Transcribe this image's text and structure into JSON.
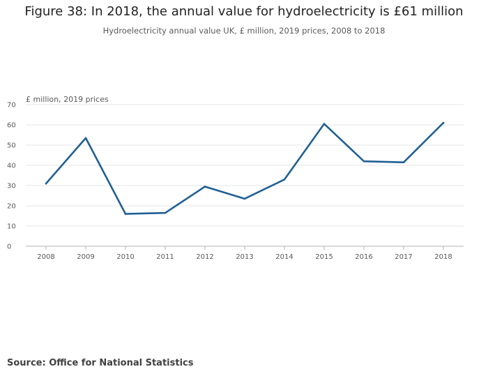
{
  "chart_data": {
    "type": "line",
    "title": "Figure 38: In 2018, the annual value for hydroelectricity is £61 million",
    "subtitle": "Hydroelectricity annual value UK, £ million, 2019 prices, 2008 to 2018",
    "ylabel": "£ million, 2019 prices",
    "xlabel": "",
    "categories": [
      "2008",
      "2009",
      "2010",
      "2011",
      "2012",
      "2013",
      "2014",
      "2015",
      "2016",
      "2017",
      "2018"
    ],
    "series": [
      {
        "name": "Hydroelectricity annual value",
        "values": [
          31,
          53.5,
          16,
          16.5,
          29.5,
          23.5,
          33,
          60.5,
          42,
          41.5,
          61
        ],
        "color": "#206095"
      }
    ],
    "ylim": [
      0,
      70
    ],
    "yticks": [
      "0",
      "10",
      "20",
      "30",
      "40",
      "50",
      "60",
      "70"
    ],
    "grid": true,
    "gridColor": "#e6e6e6",
    "axisColor": "#b3b3b3"
  },
  "footer": {
    "source": "Source: Office for National Statistics"
  }
}
